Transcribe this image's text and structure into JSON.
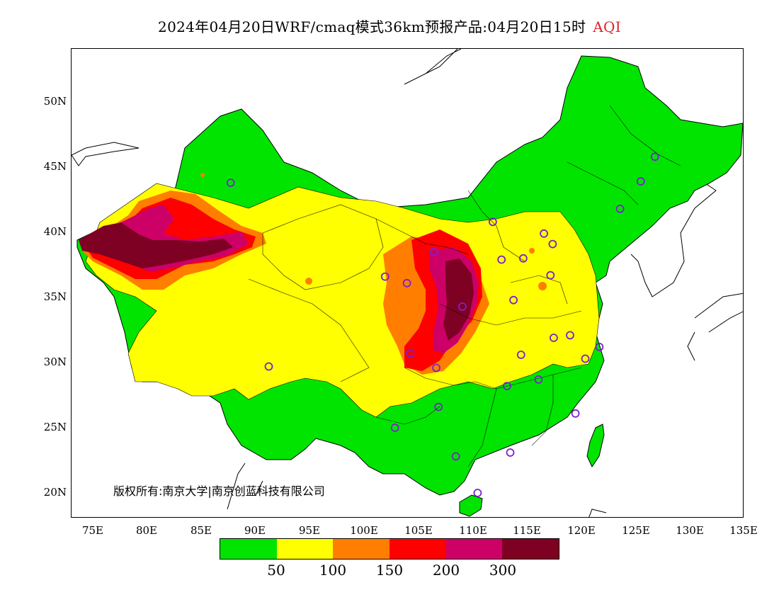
{
  "title": {
    "main": "2024年04月20日WRF/cmaq模式36km预报产品:04月20日15时",
    "variable": "AQI"
  },
  "credit": "版权所有:南京大学|南京创蓝科技有限公司",
  "axes": {
    "y_ticks": [
      "50N",
      "45N",
      "40N",
      "35N",
      "30N",
      "25N",
      "20N"
    ],
    "x_ticks": [
      "75E",
      "80E",
      "85E",
      "90E",
      "95E",
      "100E",
      "105E",
      "110E",
      "115E",
      "120E",
      "125E",
      "130E",
      "135E"
    ]
  },
  "colorbar": {
    "colors": [
      "#00e400",
      "#ffff00",
      "#ff7e00",
      "#ff0000",
      "#cc0066",
      "#7e0023"
    ],
    "labels": [
      "50",
      "100",
      "150",
      "200",
      "300"
    ]
  },
  "colors": {
    "good": "#00e400",
    "moderate": "#ffff00",
    "sensitive": "#ff7e00",
    "unhealthy": "#ff0000",
    "very_unhealthy": "#cc0066",
    "hazardous": "#7e0023",
    "station_marker": "#7a22cc"
  },
  "stations": [
    {
      "lon": 87.6,
      "lat": 43.8
    },
    {
      "lon": 91.1,
      "lat": 29.7
    },
    {
      "lon": 101.8,
      "lat": 36.6
    },
    {
      "lon": 103.8,
      "lat": 36.1
    },
    {
      "lon": 104.1,
      "lat": 30.7
    },
    {
      "lon": 106.3,
      "lat": 38.5
    },
    {
      "lon": 106.5,
      "lat": 29.6
    },
    {
      "lon": 106.7,
      "lat": 26.6
    },
    {
      "lon": 102.7,
      "lat": 25.0
    },
    {
      "lon": 108.9,
      "lat": 34.3
    },
    {
      "lon": 111.7,
      "lat": 40.8
    },
    {
      "lon": 112.5,
      "lat": 37.9
    },
    {
      "lon": 113.6,
      "lat": 34.8
    },
    {
      "lon": 114.5,
      "lat": 38.0
    },
    {
      "lon": 116.4,
      "lat": 39.9
    },
    {
      "lon": 117.2,
      "lat": 39.1
    },
    {
      "lon": 117.0,
      "lat": 36.7
    },
    {
      "lon": 117.3,
      "lat": 31.9
    },
    {
      "lon": 118.8,
      "lat": 32.1
    },
    {
      "lon": 120.2,
      "lat": 30.3
    },
    {
      "lon": 121.5,
      "lat": 31.2
    },
    {
      "lon": 114.3,
      "lat": 30.6
    },
    {
      "lon": 113.0,
      "lat": 28.2
    },
    {
      "lon": 115.9,
      "lat": 28.7
    },
    {
      "lon": 119.3,
      "lat": 26.1
    },
    {
      "lon": 113.3,
      "lat": 23.1
    },
    {
      "lon": 108.3,
      "lat": 22.8
    },
    {
      "lon": 110.3,
      "lat": 20.0
    },
    {
      "lon": 123.4,
      "lat": 41.8
    },
    {
      "lon": 125.3,
      "lat": 43.9
    },
    {
      "lon": 126.6,
      "lat": 45.8
    }
  ]
}
